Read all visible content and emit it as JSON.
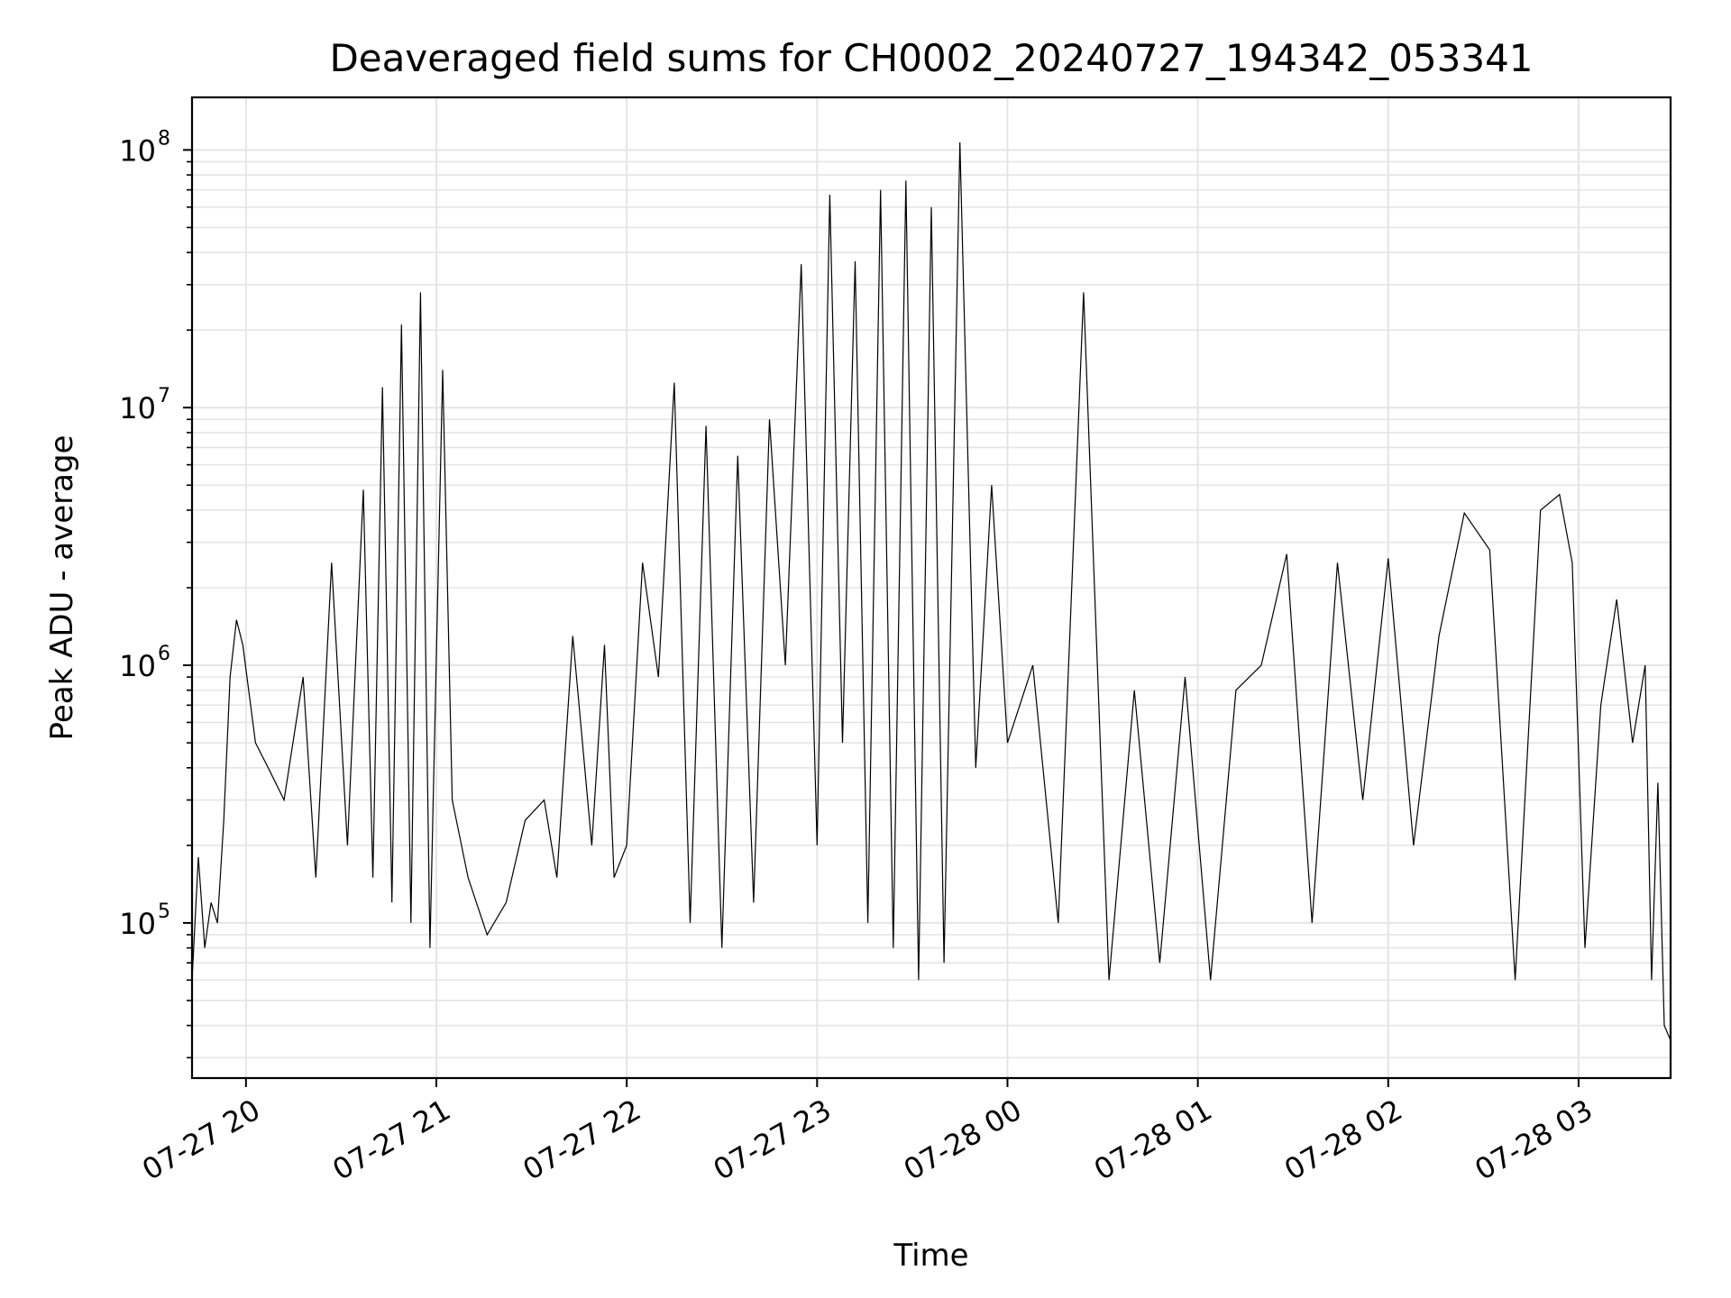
{
  "chart_data": {
    "type": "line",
    "title": "Deaveraged field sums for CH0002_20240727_194342_053341",
    "xlabel": "Time",
    "ylabel": "Peak ADU - average",
    "yscale": "log",
    "xlim": [
      "2024-07-27 19:43",
      "2024-07-28 03:29"
    ],
    "ylim": [
      25000,
      160000000
    ],
    "grid": true,
    "line_color": "#000000",
    "grid_color": "#e5e5e5",
    "x_ticks": [
      {
        "value": "2024-07-27 20:00",
        "label": "07-27 20"
      },
      {
        "value": "2024-07-27 21:00",
        "label": "07-27 21"
      },
      {
        "value": "2024-07-27 22:00",
        "label": "07-27 22"
      },
      {
        "value": "2024-07-27 23:00",
        "label": "07-27 23"
      },
      {
        "value": "2024-07-28 00:00",
        "label": "07-28 00"
      },
      {
        "value": "2024-07-28 01:00",
        "label": "07-28 01"
      },
      {
        "value": "2024-07-28 02:00",
        "label": "07-28 02"
      },
      {
        "value": "2024-07-28 03:00",
        "label": "07-28 03"
      }
    ],
    "y_ticks": [
      {
        "value": 100000,
        "base": "10",
        "exp": "5"
      },
      {
        "value": 1000000,
        "base": "10",
        "exp": "6"
      },
      {
        "value": 10000000,
        "base": "10",
        "exp": "7"
      },
      {
        "value": 100000000,
        "base": "10",
        "exp": "8"
      }
    ],
    "series": [
      {
        "x": [
          "2024-07-27 19:43",
          "2024-07-27 19:45",
          "2024-07-27 19:47",
          "2024-07-27 19:49",
          "2024-07-27 19:51",
          "2024-07-27 19:53",
          "2024-07-27 19:55",
          "2024-07-27 19:57",
          "2024-07-27 19:59",
          "2024-07-27 20:03",
          "2024-07-27 20:07",
          "2024-07-27 20:12",
          "2024-07-27 20:18",
          "2024-07-27 20:22",
          "2024-07-27 20:27",
          "2024-07-27 20:32",
          "2024-07-27 20:37",
          "2024-07-27 20:40",
          "2024-07-27 20:43",
          "2024-07-27 20:46",
          "2024-07-27 20:49",
          "2024-07-27 20:52",
          "2024-07-27 20:55",
          "2024-07-27 20:58",
          "2024-07-27 21:02",
          "2024-07-27 21:05",
          "2024-07-27 21:10",
          "2024-07-27 21:16",
          "2024-07-27 21:22",
          "2024-07-27 21:28",
          "2024-07-27 21:34",
          "2024-07-27 21:38",
          "2024-07-27 21:43",
          "2024-07-27 21:49",
          "2024-07-27 21:53",
          "2024-07-27 21:56",
          "2024-07-27 22:00",
          "2024-07-27 22:05",
          "2024-07-27 22:10",
          "2024-07-27 22:15",
          "2024-07-27 22:20",
          "2024-07-27 22:25",
          "2024-07-27 22:30",
          "2024-07-27 22:35",
          "2024-07-27 22:40",
          "2024-07-27 22:45",
          "2024-07-27 22:50",
          "2024-07-27 22:55",
          "2024-07-27 23:00",
          "2024-07-27 23:04",
          "2024-07-27 23:08",
          "2024-07-27 23:12",
          "2024-07-27 23:16",
          "2024-07-27 23:20",
          "2024-07-27 23:24",
          "2024-07-27 23:28",
          "2024-07-27 23:32",
          "2024-07-27 23:36",
          "2024-07-27 23:40",
          "2024-07-27 23:45",
          "2024-07-27 23:50",
          "2024-07-27 23:55",
          "2024-07-28 00:00",
          "2024-07-28 00:08",
          "2024-07-28 00:16",
          "2024-07-28 00:24",
          "2024-07-28 00:32",
          "2024-07-28 00:40",
          "2024-07-28 00:48",
          "2024-07-28 00:56",
          "2024-07-28 01:04",
          "2024-07-28 01:12",
          "2024-07-28 01:20",
          "2024-07-28 01:28",
          "2024-07-28 01:36",
          "2024-07-28 01:44",
          "2024-07-28 01:52",
          "2024-07-28 02:00",
          "2024-07-28 02:08",
          "2024-07-28 02:16",
          "2024-07-28 02:24",
          "2024-07-28 02:32",
          "2024-07-28 02:40",
          "2024-07-28 02:48",
          "2024-07-28 02:54",
          "2024-07-28 02:58",
          "2024-07-28 03:02",
          "2024-07-28 03:07",
          "2024-07-28 03:12",
          "2024-07-28 03:17",
          "2024-07-28 03:21",
          "2024-07-28 03:23",
          "2024-07-28 03:25",
          "2024-07-28 03:27",
          "2024-07-28 03:29"
        ],
        "y": [
          60000,
          180000,
          80000,
          120000,
          100000,
          250000,
          900000,
          1500000,
          1200000,
          500000,
          400000,
          300000,
          900000,
          150000,
          2500000,
          200000,
          4800000,
          150000,
          12000000,
          120000,
          21000000,
          100000,
          28000000,
          80000,
          14000000,
          300000,
          150000,
          90000,
          120000,
          250000,
          300000,
          150000,
          1300000,
          200000,
          1200000,
          150000,
          200000,
          2500000,
          900000,
          12500000,
          100000,
          8500000,
          80000,
          6500000,
          120000,
          9000000,
          1000000,
          36000000,
          200000,
          67000000,
          500000,
          37000000,
          100000,
          70000000,
          80000,
          76000000,
          60000,
          60000000,
          70000,
          107000000,
          400000,
          5000000,
          500000,
          1000000,
          100000,
          28000000,
          60000,
          800000,
          70000,
          900000,
          60000,
          800000,
          1000000,
          2700000,
          100000,
          2500000,
          300000,
          2600000,
          200000,
          1300000,
          3900000,
          2800000,
          60000,
          4000000,
          4600000,
          2500000,
          80000,
          700000,
          1800000,
          500000,
          1000000,
          60000,
          350000,
          40000,
          35000
        ]
      }
    ]
  }
}
